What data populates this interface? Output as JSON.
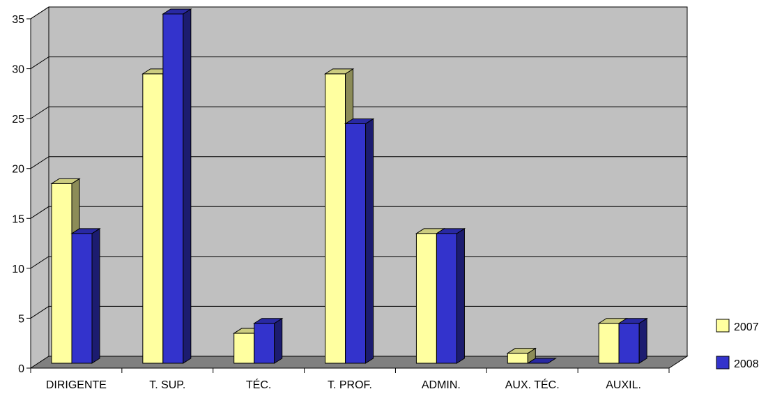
{
  "chart_data": {
    "type": "bar",
    "categories": [
      "DIRIGENTE",
      "T. SUP.",
      "TÉC.",
      "T. PROF.",
      "ADMIN.",
      "AUX. TÉC.",
      "AUXIL."
    ],
    "series": [
      {
        "name": "2007",
        "values": [
          18,
          29,
          3,
          29,
          13,
          1,
          4
        ],
        "color": "#FFFFA0"
      },
      {
        "name": "2008",
        "values": [
          13,
          35,
          4,
          24,
          13,
          0,
          4
        ],
        "color": "#3333CC"
      }
    ],
    "yticks": [
      "0",
      "5",
      "10",
      "15",
      "20",
      "25",
      "30",
      "35"
    ],
    "ylim": [
      0,
      35
    ],
    "grid": true,
    "legend_position": "right",
    "wall_color": "#C0C0C0",
    "floor_color": "#808080"
  }
}
